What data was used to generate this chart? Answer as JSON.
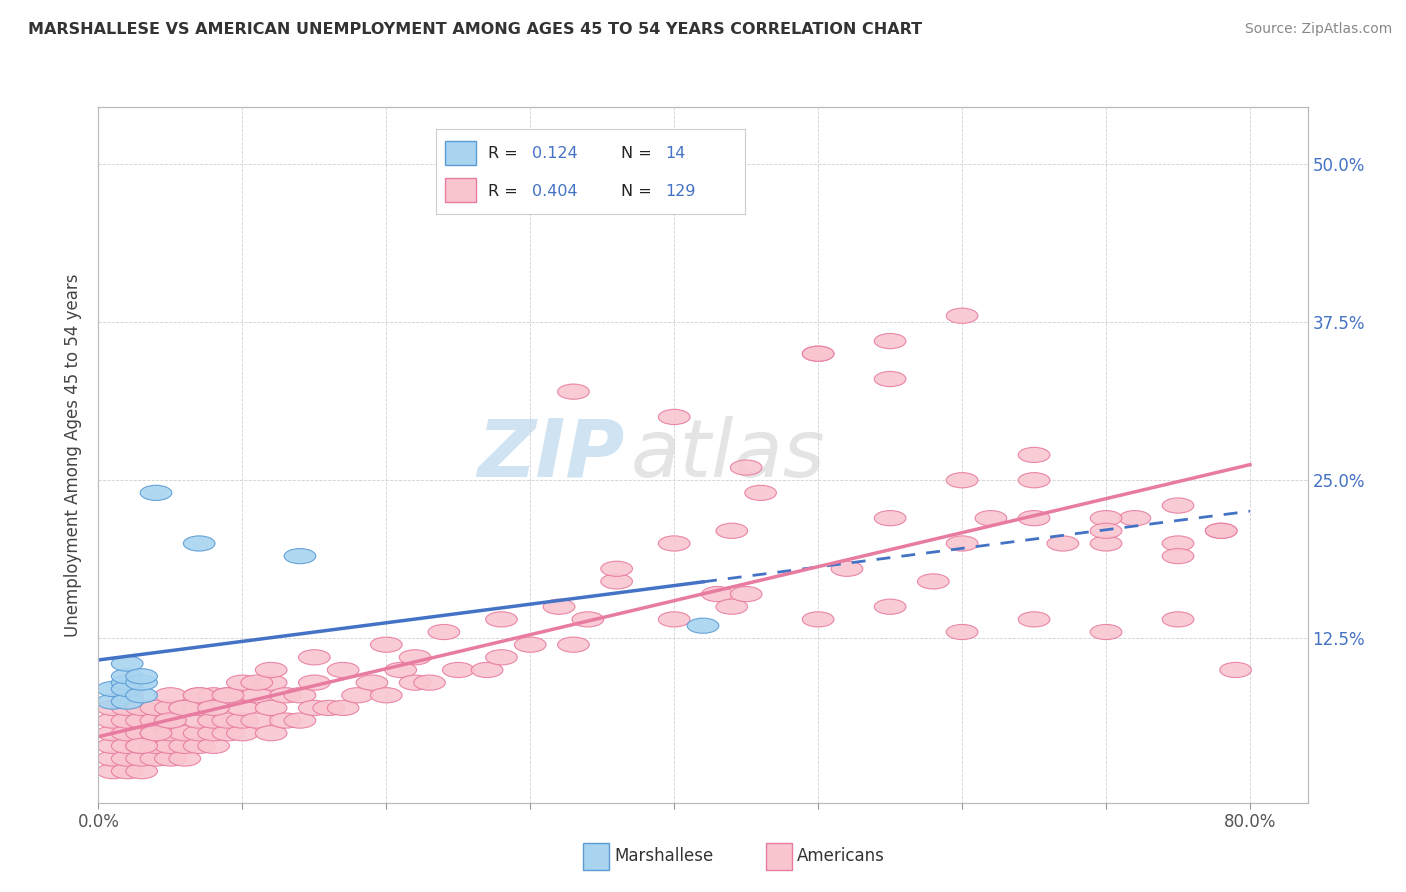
{
  "title": "MARSHALLESE VS AMERICAN UNEMPLOYMENT AMONG AGES 45 TO 54 YEARS CORRELATION CHART",
  "source": "Source: ZipAtlas.com",
  "ylabel": "Unemployment Among Ages 45 to 54 years",
  "xlim": [
    0.0,
    0.84
  ],
  "ylim": [
    -0.005,
    0.545
  ],
  "xtick_labels": [
    "0.0%",
    "",
    "",
    "",
    "",
    "",
    "",
    "",
    "80.0%"
  ],
  "xtick_vals": [
    0.0,
    0.1,
    0.2,
    0.3,
    0.4,
    0.5,
    0.6,
    0.7,
    0.8
  ],
  "ytick_labels": [
    "12.5%",
    "25.0%",
    "37.5%",
    "50.0%"
  ],
  "ytick_vals": [
    0.125,
    0.25,
    0.375,
    0.5
  ],
  "color_marshallese_fill": "#a8d4f0",
  "color_marshallese_edge": "#5b9bd5",
  "color_americans_fill": "#f9c6d0",
  "color_americans_edge": "#e87ca0",
  "color_trend_marshallese": "#4472c4",
  "color_trend_americans": "#e87ca0",
  "color_text_blue": "#4472c4",
  "watermark_zip": "ZIP",
  "watermark_atlas": "atlas",
  "background_color": "#ffffff",
  "grid_color": "#d0d0d0",
  "marshallese_x": [
    0.01,
    0.01,
    0.02,
    0.02,
    0.02,
    0.02,
    0.02,
    0.03,
    0.03,
    0.03,
    0.04,
    0.07,
    0.14,
    0.42
  ],
  "marshallese_y": [
    0.075,
    0.085,
    0.09,
    0.075,
    0.085,
    0.095,
    0.105,
    0.08,
    0.09,
    0.095,
    0.24,
    0.2,
    0.19,
    0.135
  ],
  "americans_x": [
    0.01,
    0.01,
    0.01,
    0.01,
    0.01,
    0.01,
    0.02,
    0.02,
    0.02,
    0.02,
    0.02,
    0.02,
    0.02,
    0.03,
    0.03,
    0.03,
    0.03,
    0.03,
    0.03,
    0.04,
    0.04,
    0.04,
    0.04,
    0.04,
    0.05,
    0.05,
    0.05,
    0.05,
    0.05,
    0.05,
    0.06,
    0.06,
    0.06,
    0.06,
    0.07,
    0.07,
    0.07,
    0.07,
    0.07,
    0.08,
    0.08,
    0.08,
    0.08,
    0.09,
    0.09,
    0.09,
    0.1,
    0.1,
    0.1,
    0.11,
    0.11,
    0.12,
    0.12,
    0.12,
    0.13,
    0.13,
    0.14,
    0.14,
    0.15,
    0.15,
    0.16,
    0.17,
    0.18,
    0.19,
    0.2,
    0.21,
    0.22,
    0.23,
    0.25,
    0.27,
    0.28,
    0.3,
    0.33,
    0.34,
    0.36,
    0.4,
    0.43,
    0.44,
    0.45,
    0.46,
    0.5,
    0.52,
    0.55,
    0.58,
    0.6,
    0.62,
    0.65,
    0.67,
    0.7,
    0.72,
    0.75,
    0.78,
    0.03,
    0.04,
    0.05,
    0.06,
    0.07,
    0.08,
    0.09,
    0.1,
    0.11,
    0.12,
    0.15,
    0.17,
    0.2,
    0.22,
    0.24,
    0.28,
    0.32,
    0.36,
    0.4,
    0.44,
    0.5,
    0.55,
    0.6,
    0.65,
    0.7,
    0.75,
    0.79,
    0.55,
    0.6,
    0.65,
    0.7,
    0.75,
    0.33,
    0.4,
    0.45,
    0.5,
    0.55,
    0.6,
    0.65,
    0.7,
    0.75,
    0.78
  ],
  "americans_y": [
    0.02,
    0.03,
    0.04,
    0.05,
    0.06,
    0.07,
    0.02,
    0.03,
    0.04,
    0.05,
    0.06,
    0.07,
    0.08,
    0.02,
    0.03,
    0.04,
    0.05,
    0.06,
    0.07,
    0.03,
    0.04,
    0.05,
    0.06,
    0.07,
    0.03,
    0.04,
    0.05,
    0.06,
    0.07,
    0.08,
    0.03,
    0.04,
    0.05,
    0.07,
    0.04,
    0.05,
    0.06,
    0.07,
    0.08,
    0.04,
    0.05,
    0.06,
    0.08,
    0.05,
    0.06,
    0.08,
    0.05,
    0.06,
    0.07,
    0.06,
    0.08,
    0.05,
    0.07,
    0.09,
    0.06,
    0.08,
    0.06,
    0.08,
    0.07,
    0.09,
    0.07,
    0.07,
    0.08,
    0.09,
    0.08,
    0.1,
    0.09,
    0.09,
    0.1,
    0.1,
    0.11,
    0.12,
    0.12,
    0.14,
    0.17,
    0.14,
    0.16,
    0.15,
    0.16,
    0.24,
    0.14,
    0.18,
    0.15,
    0.17,
    0.13,
    0.22,
    0.14,
    0.2,
    0.13,
    0.22,
    0.14,
    0.21,
    0.04,
    0.05,
    0.06,
    0.07,
    0.08,
    0.07,
    0.08,
    0.09,
    0.09,
    0.1,
    0.11,
    0.1,
    0.12,
    0.11,
    0.13,
    0.14,
    0.15,
    0.18,
    0.2,
    0.21,
    0.35,
    0.36,
    0.2,
    0.22,
    0.2,
    0.2,
    0.1,
    0.22,
    0.25,
    0.25,
    0.22,
    0.23,
    0.32,
    0.3,
    0.26,
    0.35,
    0.33,
    0.38,
    0.27,
    0.21,
    0.19,
    0.21
  ]
}
